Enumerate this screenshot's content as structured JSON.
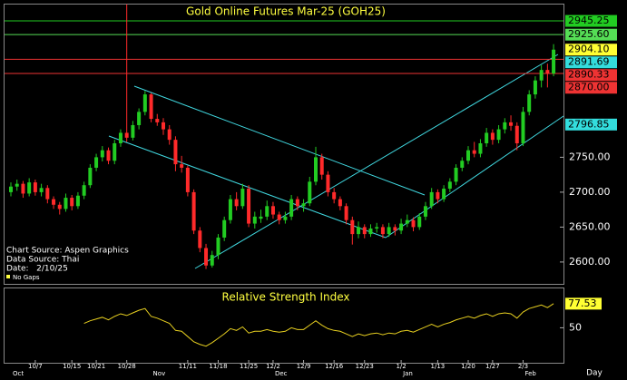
{
  "chart_data": {
    "type": "candlestick",
    "title": "Gold Online Futures Mar-25 (GOH25)",
    "categories": [
      null,
      null,
      null,
      null,
      "10/7",
      null,
      null,
      null,
      null,
      null,
      "10/15",
      null,
      null,
      null,
      "10/21",
      null,
      null,
      null,
      null,
      "10/28",
      null,
      null,
      null,
      null,
      null,
      null,
      null,
      null,
      null,
      "11/11",
      null,
      null,
      null,
      null,
      "11/18",
      null,
      null,
      null,
      null,
      "11/25",
      null,
      null,
      null,
      "12/2",
      null,
      null,
      null,
      null,
      "12/9",
      null,
      null,
      null,
      null,
      "12/16",
      null,
      null,
      null,
      null,
      "12/23",
      null,
      null,
      null,
      null,
      null,
      "1/2",
      null,
      null,
      null,
      null,
      null,
      "1/13",
      null,
      null,
      null,
      null,
      "1/20",
      null,
      null,
      null,
      "1/27",
      null,
      null,
      null,
      null,
      "2/3",
      null,
      null,
      null,
      null,
      null
    ],
    "months": [
      "Oct",
      null,
      null,
      null,
      null,
      null,
      null,
      null,
      null,
      null,
      null,
      null,
      null,
      null,
      null,
      null,
      null,
      null,
      null,
      null,
      null,
      null,
      null,
      "Nov",
      null,
      null,
      null,
      null,
      null,
      null,
      null,
      null,
      null,
      null,
      null,
      null,
      null,
      null,
      null,
      null,
      null,
      null,
      null,
      "Dec",
      null,
      null,
      null,
      null,
      null,
      null,
      null,
      null,
      null,
      null,
      null,
      null,
      null,
      null,
      null,
      null,
      null,
      null,
      null,
      null,
      "Jan",
      null,
      null,
      null,
      null,
      null,
      null,
      null,
      null,
      null,
      null,
      null,
      null,
      null,
      null,
      null,
      null,
      null,
      null,
      null,
      "Feb",
      null,
      null,
      null,
      null,
      null
    ],
    "x_unit": "Day",
    "ohlc": [
      [
        2700,
        2714,
        2694,
        2708
      ],
      [
        2708,
        2718,
        2702,
        2712
      ],
      [
        2712,
        2716,
        2692,
        2698
      ],
      [
        2698,
        2720,
        2694,
        2714
      ],
      [
        2714,
        2718,
        2695,
        2700
      ],
      [
        2700,
        2712,
        2694,
        2706
      ],
      [
        2706,
        2710,
        2684,
        2690
      ],
      [
        2690,
        2694,
        2676,
        2682
      ],
      [
        2682,
        2686,
        2668,
        2676
      ],
      [
        2676,
        2698,
        2672,
        2692
      ],
      [
        2692,
        2696,
        2674,
        2680
      ],
      [
        2680,
        2700,
        2676,
        2695
      ],
      [
        2695,
        2715,
        2690,
        2710
      ],
      [
        2710,
        2740,
        2706,
        2735
      ],
      [
        2735,
        2755,
        2730,
        2750
      ],
      [
        2750,
        2766,
        2744,
        2760
      ],
      [
        2760,
        2764,
        2740,
        2745
      ],
      [
        2745,
        2775,
        2740,
        2770
      ],
      [
        2770,
        2790,
        2765,
        2785
      ],
      [
        2785,
        2969,
        2772,
        2778
      ],
      [
        2778,
        2802,
        2774,
        2796
      ],
      [
        2796,
        2820,
        2790,
        2815
      ],
      [
        2815,
        2845,
        2810,
        2840
      ],
      [
        2840,
        2842,
        2800,
        2805
      ],
      [
        2805,
        2812,
        2795,
        2800
      ],
      [
        2800,
        2806,
        2782,
        2790
      ],
      [
        2790,
        2796,
        2768,
        2775
      ],
      [
        2775,
        2780,
        2730,
        2740
      ],
      [
        2740,
        2752,
        2728,
        2735
      ],
      [
        2735,
        2738,
        2694,
        2700
      ],
      [
        2700,
        2704,
        2640,
        2645
      ],
      [
        2645,
        2650,
        2614,
        2620
      ],
      [
        2620,
        2626,
        2590,
        2595
      ],
      [
        2595,
        2616,
        2592,
        2610
      ],
      [
        2610,
        2640,
        2604,
        2635
      ],
      [
        2635,
        2665,
        2630,
        2660
      ],
      [
        2660,
        2696,
        2655,
        2690
      ],
      [
        2690,
        2700,
        2674,
        2680
      ],
      [
        2680,
        2712,
        2676,
        2705
      ],
      [
        2705,
        2710,
        2650,
        2655
      ],
      [
        2655,
        2672,
        2648,
        2665
      ],
      [
        2662,
        2675,
        2656,
        2665
      ],
      [
        2665,
        2688,
        2660,
        2680
      ],
      [
        2680,
        2686,
        2662,
        2668
      ],
      [
        2668,
        2672,
        2654,
        2660
      ],
      [
        2660,
        2672,
        2655,
        2665
      ],
      [
        2665,
        2696,
        2660,
        2690
      ],
      [
        2690,
        2694,
        2674,
        2680
      ],
      [
        2680,
        2690,
        2672,
        2684
      ],
      [
        2684,
        2722,
        2680,
        2715
      ],
      [
        2715,
        2765,
        2710,
        2750
      ],
      [
        2750,
        2755,
        2718,
        2725
      ],
      [
        2725,
        2730,
        2694,
        2700
      ],
      [
        2700,
        2706,
        2684,
        2690
      ],
      [
        2690,
        2694,
        2674,
        2680
      ],
      [
        2680,
        2684,
        2654,
        2660
      ],
      [
        2660,
        2665,
        2625,
        2640
      ],
      [
        2640,
        2658,
        2634,
        2650
      ],
      [
        2650,
        2654,
        2634,
        2640
      ],
      [
        2640,
        2654,
        2636,
        2648
      ],
      [
        2648,
        2656,
        2642,
        2650
      ],
      [
        2650,
        2654,
        2634,
        2640
      ],
      [
        2640,
        2656,
        2636,
        2650
      ],
      [
        2650,
        2654,
        2638,
        2645
      ],
      [
        2645,
        2662,
        2640,
        2655
      ],
      [
        2655,
        2668,
        2650,
        2660
      ],
      [
        2660,
        2664,
        2644,
        2650
      ],
      [
        2650,
        2670,
        2646,
        2665
      ],
      [
        2665,
        2686,
        2660,
        2680
      ],
      [
        2680,
        2706,
        2676,
        2700
      ],
      [
        2700,
        2704,
        2684,
        2690
      ],
      [
        2690,
        2710,
        2686,
        2705
      ],
      [
        2705,
        2720,
        2700,
        2715
      ],
      [
        2715,
        2740,
        2710,
        2735
      ],
      [
        2735,
        2750,
        2730,
        2745
      ],
      [
        2745,
        2766,
        2740,
        2760
      ],
      [
        2760,
        2772,
        2750,
        2755
      ],
      [
        2755,
        2776,
        2750,
        2770
      ],
      [
        2770,
        2792,
        2765,
        2785
      ],
      [
        2785,
        2790,
        2768,
        2775
      ],
      [
        2775,
        2796,
        2770,
        2790
      ],
      [
        2790,
        2806,
        2784,
        2800
      ],
      [
        2800,
        2810,
        2788,
        2795
      ],
      [
        2795,
        2800,
        2760,
        2770
      ],
      [
        2770,
        2822,
        2766,
        2815
      ],
      [
        2815,
        2846,
        2810,
        2840
      ],
      [
        2840,
        2866,
        2834,
        2860
      ],
      [
        2860,
        2882,
        2850,
        2875
      ],
      [
        2875,
        2884,
        2850,
        2870
      ],
      [
        2870,
        2912,
        2866,
        2904.1
      ]
    ],
    "up_color": "#22cc22",
    "down_color": "#ff2a2a",
    "ylim": [
      2570,
      2968.7
    ],
    "yticks": [
      {
        "value": 2600,
        "label": "2600.00"
      },
      {
        "value": 2650,
        "label": "2650.00"
      },
      {
        "value": 2700,
        "label": "2700.00"
      },
      {
        "value": 2750,
        "label": "2750.00"
      }
    ],
    "price_markers": [
      {
        "value": 2945.25,
        "color": "#22cc22",
        "line": true
      },
      {
        "value": 2925.6,
        "label": "2925.60",
        "color": "#55dd55",
        "line": true
      },
      {
        "value": 2904.1,
        "label": "2904.10",
        "color": "#ffff33",
        "line": false
      },
      {
        "value": 2891.69,
        "color": "#33dddd",
        "line": false
      },
      {
        "value": 2890.33,
        "color": "#ee3333",
        "line": true
      },
      {
        "value": 2870,
        "label": "2870.00",
        "color": "#ee3333",
        "line": true
      },
      {
        "value": 2796.85,
        "color": "#33dddd",
        "line": false
      }
    ],
    "notes": [
      "Chart Source: Aspen Graphics",
      "Data Source: Thai",
      "Date:   2/10/25",
      "No Gaps"
    ],
    "rsi": {
      "title": "Relative Strength Index",
      "color": "#e8d020",
      "label_color": "#ffff33",
      "ylim": [
        10,
        95
      ],
      "yticks": [
        50
      ],
      "values": [
        null,
        null,
        null,
        null,
        null,
        null,
        null,
        null,
        null,
        null,
        null,
        null,
        55,
        58,
        60,
        62,
        59,
        63,
        66,
        64,
        67,
        70,
        72,
        63,
        61,
        58,
        55,
        47,
        46,
        40,
        34,
        31,
        29,
        33,
        38,
        43,
        49,
        47,
        51,
        44,
        46,
        46,
        48,
        46,
        45,
        46,
        50,
        48,
        48,
        53,
        58,
        53,
        49,
        47,
        46,
        43,
        40,
        43,
        41,
        43,
        44,
        42,
        44,
        43,
        46,
        47,
        45,
        48,
        51,
        54,
        51,
        54,
        56,
        59,
        61,
        63,
        61,
        64,
        66,
        63,
        66,
        67,
        66,
        61,
        68,
        72,
        74,
        76,
        73,
        77.53
      ]
    }
  }
}
